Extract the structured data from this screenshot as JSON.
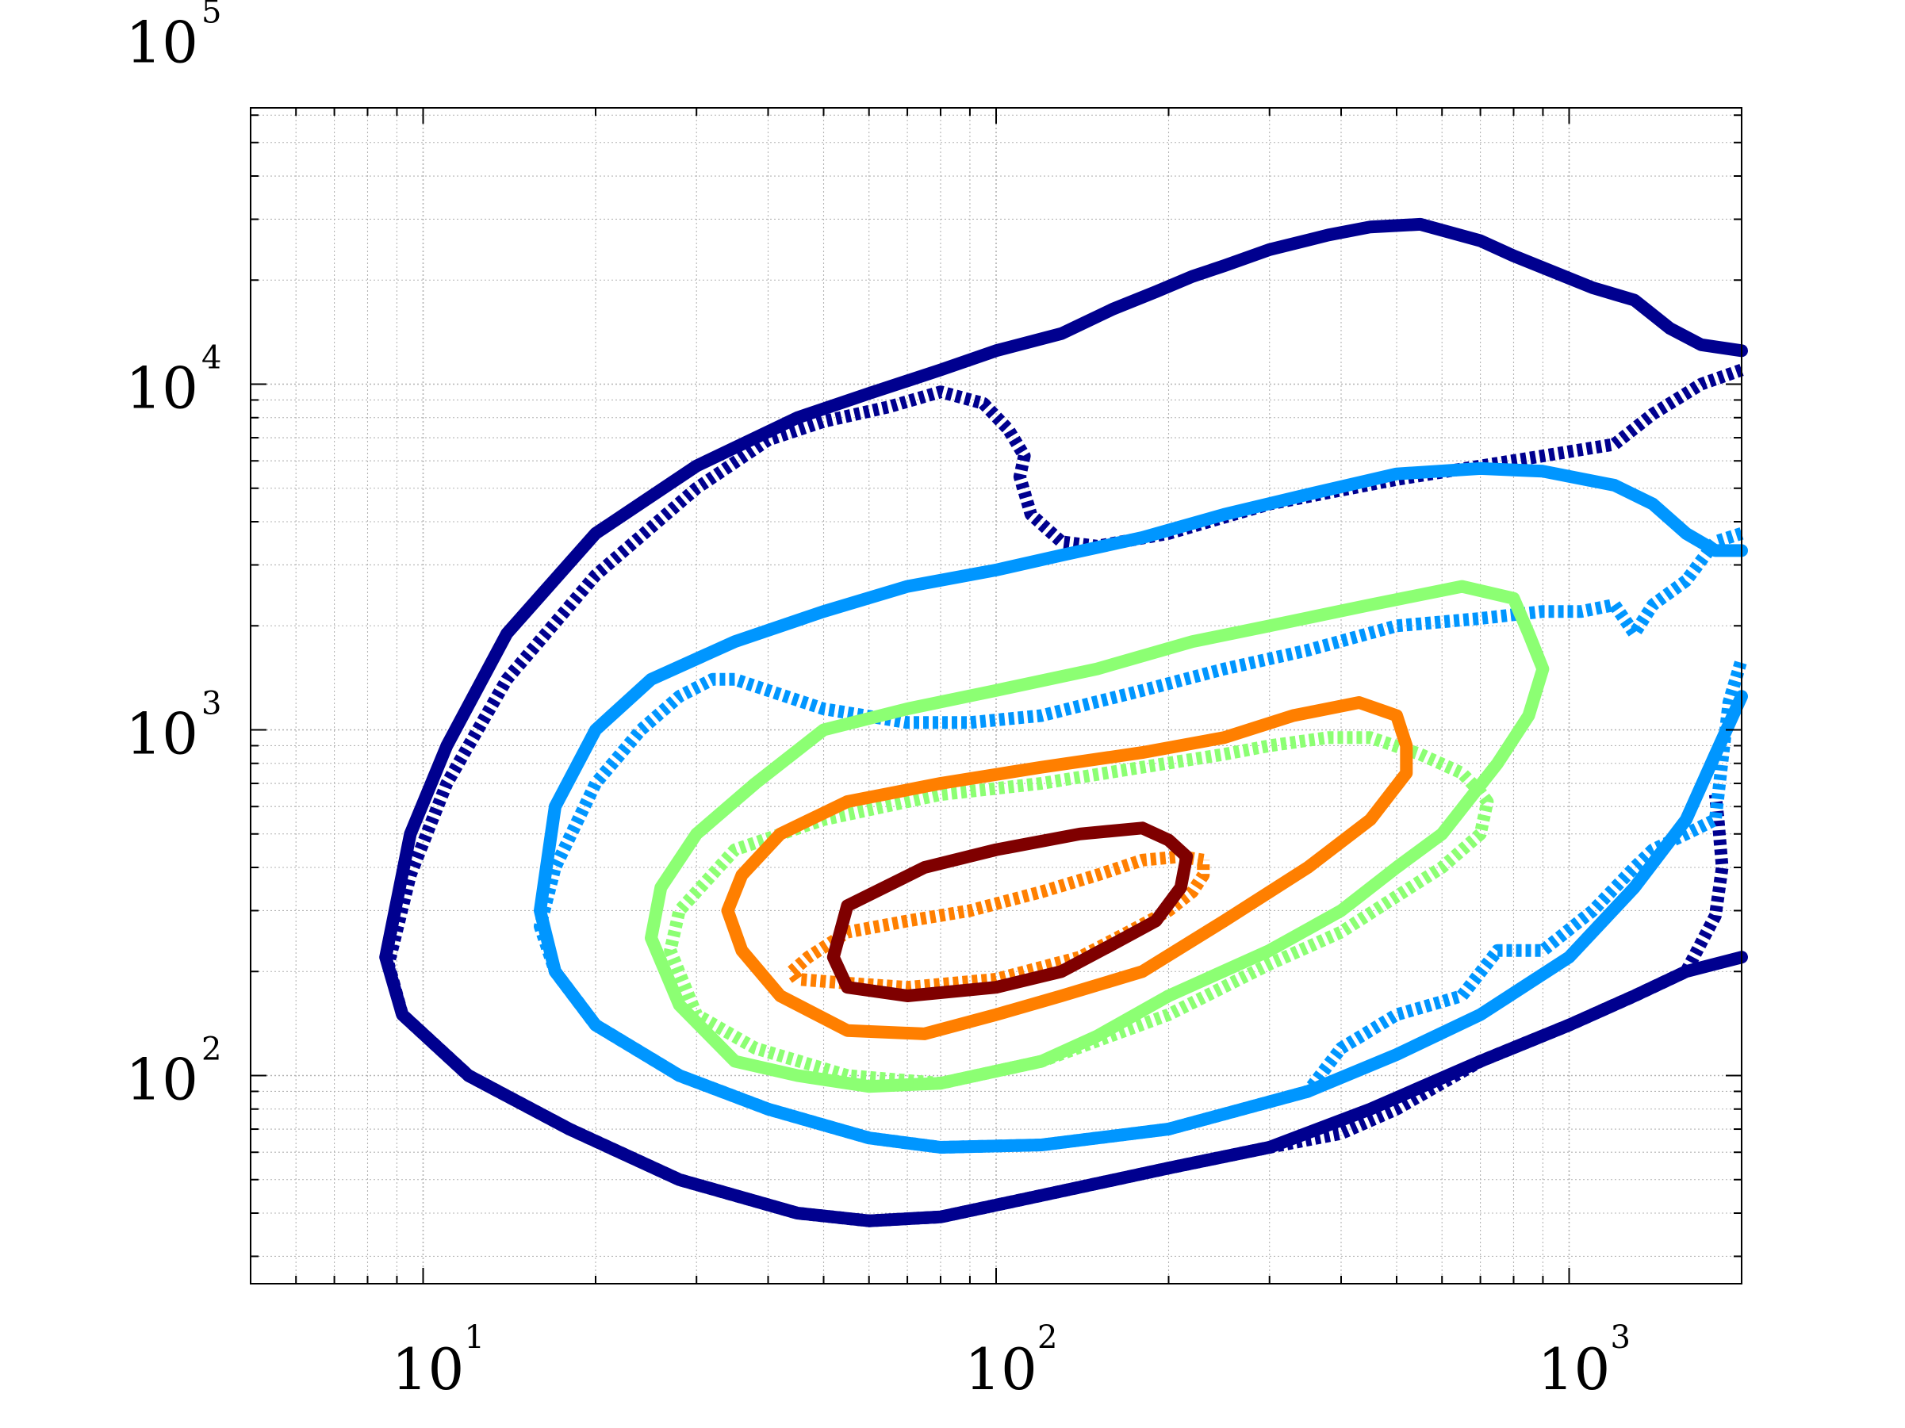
{
  "chart_data": {
    "type": "line",
    "title": "",
    "xlabel": "",
    "ylabel": "",
    "xscale": "log",
    "yscale": "log",
    "xlim": [
      5,
      2000
    ],
    "ylim": [
      25,
      63000
    ],
    "grid": true,
    "x_ticks": [
      {
        "value": 10,
        "base": "10",
        "exp": "1"
      },
      {
        "value": 100,
        "base": "10",
        "exp": "2"
      },
      {
        "value": 1000,
        "base": "10",
        "exp": "3"
      }
    ],
    "y_ticks": [
      {
        "value": 100,
        "base": "10",
        "exp": "2"
      },
      {
        "value": 1000,
        "base": "10",
        "exp": "3"
      },
      {
        "value": 10000,
        "base": "10",
        "exp": "4"
      },
      {
        "value": 100000,
        "base": "10",
        "exp": "5"
      }
    ],
    "series": [
      {
        "level": 1,
        "style": "solid",
        "color": "#00008f",
        "points": [
          [
            2000,
            12500
          ],
          [
            1700,
            13000
          ],
          [
            1500,
            14500
          ],
          [
            1300,
            17500
          ],
          [
            1100,
            19000
          ],
          [
            800,
            23500
          ],
          [
            700,
            26000
          ],
          [
            550,
            29000
          ],
          [
            450,
            28500
          ],
          [
            380,
            27000
          ],
          [
            300,
            24500
          ],
          [
            250,
            22000
          ],
          [
            220,
            20500
          ],
          [
            190,
            18500
          ],
          [
            160,
            16500
          ],
          [
            130,
            14000
          ],
          [
            100,
            12500
          ],
          [
            80,
            11000
          ],
          [
            60,
            9400
          ],
          [
            45,
            8000
          ],
          [
            30,
            5800
          ],
          [
            20,
            3700
          ],
          [
            14,
            1900
          ],
          [
            11,
            900
          ],
          [
            9.5,
            500
          ],
          [
            8.6,
            220
          ],
          [
            9.2,
            150
          ],
          [
            12,
            100
          ],
          [
            18,
            70
          ],
          [
            28,
            50
          ],
          [
            45,
            40
          ],
          [
            60,
            38
          ],
          [
            80,
            39
          ],
          [
            120,
            45
          ],
          [
            200,
            54
          ],
          [
            300,
            62
          ],
          [
            450,
            80
          ],
          [
            700,
            110
          ],
          [
            1000,
            140
          ],
          [
            1300,
            170
          ],
          [
            1600,
            200
          ],
          [
            2000,
            220
          ]
        ]
      },
      {
        "level": 1,
        "style": "dotted",
        "color": "#00008f",
        "points": [
          [
            2000,
            11000
          ],
          [
            1700,
            10000
          ],
          [
            1400,
            8200
          ],
          [
            1200,
            6700
          ],
          [
            900,
            6200
          ],
          [
            500,
            5300
          ],
          [
            300,
            4500
          ],
          [
            200,
            3700
          ],
          [
            150,
            3400
          ],
          [
            130,
            3500
          ],
          [
            115,
            4200
          ],
          [
            110,
            5400
          ],
          [
            112,
            6200
          ],
          [
            105,
            7400
          ],
          [
            95,
            8800
          ],
          [
            80,
            9500
          ],
          [
            65,
            8600
          ],
          [
            50,
            7800
          ],
          [
            40,
            6900
          ],
          [
            30,
            5000
          ],
          [
            20,
            2800
          ],
          [
            14,
            1400
          ],
          [
            11,
            700
          ],
          [
            9.5,
            380
          ],
          [
            8.7,
            210
          ],
          [
            9.2,
            150
          ],
          [
            12,
            100
          ],
          [
            18,
            70
          ],
          [
            28,
            50
          ],
          [
            45,
            40
          ],
          [
            60,
            38
          ],
          [
            80,
            39
          ],
          [
            120,
            45
          ],
          [
            200,
            54
          ],
          [
            300,
            62
          ],
          [
            400,
            68
          ],
          [
            500,
            80
          ],
          [
            700,
            110
          ],
          [
            1000,
            140
          ],
          [
            1300,
            170
          ],
          [
            1600,
            200
          ],
          [
            1800,
            290
          ],
          [
            1850,
            400
          ],
          [
            1820,
            550
          ],
          [
            1800,
            650
          ]
        ]
      },
      {
        "level": 2,
        "style": "solid",
        "color": "#0096ff",
        "points": [
          [
            2000,
            3300
          ],
          [
            1800,
            3300
          ],
          [
            1600,
            3700
          ],
          [
            1400,
            4500
          ],
          [
            1200,
            5100
          ],
          [
            900,
            5600
          ],
          [
            700,
            5700
          ],
          [
            500,
            5500
          ],
          [
            350,
            4800
          ],
          [
            250,
            4200
          ],
          [
            180,
            3600
          ],
          [
            130,
            3200
          ],
          [
            100,
            2900
          ],
          [
            70,
            2600
          ],
          [
            50,
            2200
          ],
          [
            35,
            1800
          ],
          [
            25,
            1400
          ],
          [
            20,
            1000
          ],
          [
            17,
            600
          ],
          [
            16,
            300
          ],
          [
            17,
            200
          ],
          [
            20,
            140
          ],
          [
            28,
            100
          ],
          [
            40,
            80
          ],
          [
            60,
            66
          ],
          [
            80,
            62
          ],
          [
            120,
            63
          ],
          [
            200,
            70
          ],
          [
            350,
            90
          ],
          [
            500,
            115
          ],
          [
            700,
            150
          ],
          [
            1000,
            220
          ],
          [
            1300,
            350
          ],
          [
            1600,
            550
          ],
          [
            1800,
            850
          ],
          [
            2000,
            1250
          ]
        ]
      },
      {
        "level": 2,
        "style": "dotted",
        "color": "#0096ff",
        "points": [
          [
            2000,
            3700
          ],
          [
            1800,
            3500
          ],
          [
            1600,
            2700
          ],
          [
            1400,
            2300
          ],
          [
            1300,
            1900
          ],
          [
            1200,
            2300
          ],
          [
            1050,
            2200
          ],
          [
            900,
            2200
          ],
          [
            700,
            2100
          ],
          [
            500,
            2000
          ],
          [
            350,
            1700
          ],
          [
            250,
            1500
          ],
          [
            180,
            1300
          ],
          [
            120,
            1100
          ],
          [
            90,
            1050
          ],
          [
            70,
            1050
          ],
          [
            50,
            1150
          ],
          [
            40,
            1300
          ],
          [
            35,
            1400
          ],
          [
            32,
            1400
          ],
          [
            28,
            1250
          ],
          [
            24,
            1000
          ],
          [
            20,
            700
          ],
          [
            17,
            400
          ],
          [
            16,
            270
          ],
          [
            17,
            200
          ],
          [
            20,
            140
          ],
          [
            28,
            100
          ],
          [
            40,
            80
          ],
          [
            60,
            66
          ],
          [
            80,
            62
          ],
          [
            120,
            63
          ],
          [
            200,
            70
          ],
          [
            350,
            90
          ],
          [
            400,
            120
          ],
          [
            500,
            150
          ],
          [
            650,
            170
          ],
          [
            750,
            230
          ],
          [
            900,
            230
          ],
          [
            1100,
            300
          ],
          [
            1300,
            400
          ],
          [
            1400,
            450
          ],
          [
            1600,
            500
          ],
          [
            1800,
            550
          ],
          [
            1900,
            1200
          ],
          [
            2000,
            1600
          ]
        ]
      },
      {
        "level": 3,
        "style": "solid",
        "color": "#8cff73",
        "points": [
          [
            850,
            1900
          ],
          [
            900,
            1500
          ],
          [
            850,
            1100
          ],
          [
            750,
            800
          ],
          [
            600,
            500
          ],
          [
            500,
            400
          ],
          [
            400,
            300
          ],
          [
            300,
            230
          ],
          [
            200,
            170
          ],
          [
            150,
            130
          ],
          [
            120,
            110
          ],
          [
            80,
            95
          ],
          [
            60,
            93
          ],
          [
            45,
            100
          ],
          [
            35,
            110
          ],
          [
            28,
            160
          ],
          [
            25,
            250
          ],
          [
            26,
            350
          ],
          [
            30,
            500
          ],
          [
            38,
            700
          ],
          [
            50,
            1000
          ],
          [
            70,
            1150
          ],
          [
            100,
            1300
          ],
          [
            150,
            1500
          ],
          [
            220,
            1800
          ],
          [
            300,
            2000
          ],
          [
            450,
            2300
          ],
          [
            650,
            2600
          ],
          [
            800,
            2400
          ],
          [
            850,
            1900
          ]
        ]
      },
      {
        "level": 3,
        "style": "dotted",
        "color": "#8cff73",
        "points": [
          [
            700,
            660
          ],
          [
            650,
            750
          ],
          [
            550,
            850
          ],
          [
            450,
            950
          ],
          [
            380,
            950
          ],
          [
            300,
            900
          ],
          [
            250,
            850
          ],
          [
            180,
            780
          ],
          [
            120,
            700
          ],
          [
            80,
            650
          ],
          [
            50,
            550
          ],
          [
            35,
            450
          ],
          [
            28,
            300
          ],
          [
            27,
            230
          ],
          [
            30,
            150
          ],
          [
            38,
            120
          ],
          [
            55,
            100
          ],
          [
            80,
            95
          ],
          [
            120,
            110
          ],
          [
            200,
            150
          ],
          [
            300,
            210
          ],
          [
            400,
            260
          ],
          [
            500,
            330
          ],
          [
            600,
            400
          ],
          [
            700,
            500
          ],
          [
            720,
            620
          ],
          [
            700,
            660
          ]
        ]
      },
      {
        "level": 4,
        "style": "solid",
        "color": "#ff7f00",
        "points": [
          [
            500,
            1100
          ],
          [
            520,
            900
          ],
          [
            520,
            750
          ],
          [
            450,
            550
          ],
          [
            350,
            400
          ],
          [
            250,
            280
          ],
          [
            180,
            200
          ],
          [
            130,
            170
          ],
          [
            100,
            150
          ],
          [
            75,
            132
          ],
          [
            55,
            135
          ],
          [
            42,
            170
          ],
          [
            36,
            230
          ],
          [
            34,
            300
          ],
          [
            36,
            380
          ],
          [
            42,
            500
          ],
          [
            55,
            620
          ],
          [
            80,
            700
          ],
          [
            120,
            780
          ],
          [
            180,
            860
          ],
          [
            250,
            950
          ],
          [
            330,
            1100
          ],
          [
            430,
            1200
          ],
          [
            500,
            1100
          ]
        ]
      },
      {
        "level": 4,
        "style": "dotted",
        "color": "#ff7f00",
        "points": [
          [
            230,
            420
          ],
          [
            210,
            430
          ],
          [
            180,
            420
          ],
          [
            150,
            380
          ],
          [
            120,
            340
          ],
          [
            90,
            300
          ],
          [
            70,
            280
          ],
          [
            55,
            260
          ],
          [
            47,
            220
          ],
          [
            44,
            200
          ],
          [
            45,
            190
          ],
          [
            55,
            185
          ],
          [
            70,
            180
          ],
          [
            100,
            190
          ],
          [
            140,
            220
          ],
          [
            170,
            260
          ],
          [
            200,
            300
          ],
          [
            220,
            340
          ],
          [
            230,
            380
          ],
          [
            230,
            420
          ]
        ]
      },
      {
        "level": 5,
        "style": "solid",
        "color": "#7f0000",
        "points": [
          [
            215,
            430
          ],
          [
            200,
            480
          ],
          [
            180,
            520
          ],
          [
            140,
            500
          ],
          [
            100,
            450
          ],
          [
            75,
            400
          ],
          [
            55,
            310
          ],
          [
            52,
            220
          ],
          [
            55,
            180
          ],
          [
            70,
            170
          ],
          [
            100,
            180
          ],
          [
            130,
            200
          ],
          [
            160,
            240
          ],
          [
            190,
            280
          ],
          [
            210,
            350
          ],
          [
            215,
            430
          ]
        ]
      }
    ]
  }
}
